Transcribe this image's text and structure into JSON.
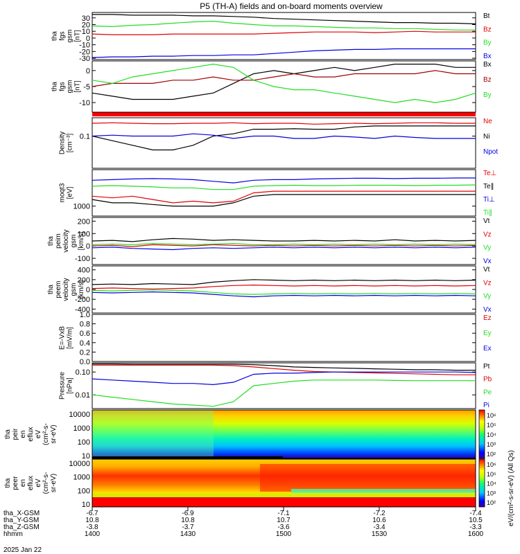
{
  "title": "P5 (TH-A) fields and on-board moments overview",
  "footer": {
    "rows": [
      {
        "label": "tha_X-GSM",
        "values": [
          "-6.7",
          "-6.9",
          "-7.1",
          "-7.2",
          "-7.4"
        ]
      },
      {
        "label": "tha_Y-GSM",
        "values": [
          "10.8",
          "10.8",
          "10.7",
          "10.6",
          "10.5"
        ]
      },
      {
        "label": "tha_Z-GSM",
        "values": [
          "-3.8",
          "-3.7",
          "-3.6",
          "-3.4",
          "-3.3"
        ]
      },
      {
        "label": "hhmm",
        "values": [
          "1400",
          "1430",
          "1500",
          "1530",
          "1600"
        ]
      }
    ],
    "date": "2025 Jan 22"
  },
  "colorbar": {
    "upper_ticks": [
      "10⁶",
      "10⁵",
      "10⁴",
      "10³",
      "10²"
    ],
    "lower_ticks": [
      "10⁶",
      "10⁵",
      "10⁴",
      "10³",
      "10²"
    ],
    "label": "eV/(cm²-s-sr-eV) (All Qs)"
  },
  "colors": {
    "black": "#000000",
    "red": "#e00000",
    "green": "#22dd22",
    "blue": "#0000e0",
    "darkred": "#a00000"
  },
  "chart_data": [
    {
      "type": "line",
      "ylabel": [
        "tha",
        "fgs",
        "gsm",
        "[nT]"
      ],
      "yticks": [
        "30",
        "20",
        "10",
        "0",
        "-10",
        "-20",
        "-30"
      ],
      "ylim": [
        -32,
        38
      ],
      "series": [
        {
          "name": "Bt",
          "color": "black",
          "values": [
            35,
            35,
            34,
            34,
            34,
            33,
            33,
            32,
            31,
            29,
            28,
            27,
            26,
            25,
            24,
            23,
            23,
            22,
            22,
            21
          ]
        },
        {
          "name": "Bz",
          "color": "red",
          "values": [
            6,
            5,
            5,
            5,
            6,
            6,
            6,
            6,
            6,
            7,
            8,
            9,
            9,
            9,
            8,
            9,
            10,
            9,
            9,
            9
          ]
        },
        {
          "name": "By",
          "color": "green",
          "values": [
            18,
            17,
            19,
            20,
            22,
            24,
            25,
            22,
            20,
            18,
            18,
            17,
            16,
            15,
            15,
            14,
            14,
            13,
            12,
            12
          ]
        },
        {
          "name": "Bx",
          "color": "blue",
          "values": [
            -29,
            -28,
            -28,
            -27,
            -27,
            -26,
            -26,
            -25,
            -25,
            -23,
            -21,
            -19,
            -18,
            -17,
            -17,
            -16,
            -16,
            -16,
            -16,
            -16
          ]
        }
      ]
    },
    {
      "type": "line",
      "ylabel": [
        "tha",
        "fgs",
        "gsm",
        "[nT]"
      ],
      "yticks": [
        "0",
        "-5",
        "-10"
      ],
      "ylim": [
        -13,
        3
      ],
      "series": [
        {
          "name": "Bx",
          "color": "black",
          "values": [
            -7,
            -8,
            -9,
            -9,
            -9,
            -8,
            -7,
            -4,
            -1,
            0,
            -1,
            0,
            1,
            0,
            1,
            2,
            2,
            2,
            1,
            1
          ]
        },
        {
          "name": "Bz",
          "color": "darkred",
          "values": [
            -5,
            -4,
            -4,
            -4,
            -3,
            -3,
            -2,
            -3,
            -3,
            -2,
            -1,
            -2,
            -2,
            -1,
            -1,
            -1,
            -1,
            0,
            -1,
            -1
          ]
        },
        {
          "name": "By",
          "color": "green",
          "values": [
            -3,
            -4,
            -2,
            -1,
            0,
            1,
            2,
            1,
            -3,
            -5,
            -6,
            -6,
            -7,
            -8,
            -9,
            -10,
            -9,
            -10,
            -9,
            -7
          ]
        }
      ]
    },
    {
      "type": "line",
      "ylabel": [
        "Density",
        "[cm⁻³]"
      ],
      "yticks": [
        "0.1"
      ],
      "ylim": [
        -1.7,
        -0.6
      ],
      "yscale": "log10",
      "series": [
        {
          "name": "Ne",
          "color": "red",
          "values": [
            -0.72,
            -0.71,
            -0.72,
            -0.73,
            -0.73,
            -0.72,
            -0.72,
            -0.71,
            -0.73,
            -0.72,
            -0.72,
            -0.74,
            -0.73,
            -0.72,
            -0.73,
            -0.72,
            -0.71,
            -0.71,
            -0.72,
            -0.72
          ]
        },
        {
          "name": "Ni",
          "color": "black",
          "values": [
            -1.0,
            -1.1,
            -1.2,
            -1.3,
            -1.3,
            -1.2,
            -1.0,
            -0.95,
            -0.85,
            -0.85,
            -0.84,
            -0.85,
            -0.85,
            -0.8,
            -0.78,
            -0.78,
            -0.78,
            -0.78,
            -0.78,
            -0.78
          ]
        },
        {
          "name": "Npot",
          "color": "blue",
          "values": [
            -1.0,
            -0.98,
            -1.0,
            -1.0,
            -1.0,
            -0.95,
            -0.98,
            -1.05,
            -1.0,
            -1.0,
            -1.05,
            -1.05,
            -1.0,
            -1.02,
            -1.05,
            -1.0,
            -1.03,
            -1.05,
            -1.05,
            -1.05
          ]
        }
      ]
    },
    {
      "type": "line",
      "ylabel": [
        "moqt3",
        "[eV]"
      ],
      "yticks": [
        "1000"
      ],
      "ylim": [
        2.7,
        4.1
      ],
      "yscale": "log10",
      "series": [
        {
          "name": "Te⊥",
          "color": "red",
          "values": [
            3.3,
            3.25,
            3.3,
            3.2,
            3.1,
            3.15,
            3.1,
            3.15,
            3.4,
            3.45,
            3.45,
            3.45,
            3.45,
            3.45,
            3.45,
            3.45,
            3.45,
            3.45,
            3.45,
            3.45
          ]
        },
        {
          "name": "Te∥",
          "color": "black",
          "values": [
            3.2,
            3.1,
            3.1,
            3.05,
            3.0,
            3.0,
            3.0,
            3.1,
            3.3,
            3.35,
            3.35,
            3.35,
            3.35,
            3.35,
            3.35,
            3.35,
            3.35,
            3.35,
            3.35,
            3.35
          ]
        },
        {
          "name": "Ti⊥",
          "color": "blue",
          "values": [
            3.78,
            3.8,
            3.82,
            3.83,
            3.82,
            3.8,
            3.75,
            3.7,
            3.78,
            3.8,
            3.8,
            3.82,
            3.83,
            3.84,
            3.84,
            3.83,
            3.84,
            3.84,
            3.85,
            3.85
          ]
        },
        {
          "name": "Ti∥",
          "color": "green",
          "values": [
            3.6,
            3.62,
            3.6,
            3.58,
            3.55,
            3.55,
            3.5,
            3.5,
            3.6,
            3.62,
            3.63,
            3.62,
            3.62,
            3.63,
            3.63,
            3.63,
            3.62,
            3.63,
            3.63,
            3.64
          ]
        }
      ]
    },
    {
      "type": "line",
      "ylabel": [
        "tha",
        "peim",
        "velocity",
        "gsm",
        "[km/s]"
      ],
      "yticks": [
        "200",
        "100",
        "0",
        "-100"
      ],
      "ylim": [
        -150,
        230
      ],
      "series": [
        {
          "name": "Vt",
          "color": "black",
          "values": [
            40,
            45,
            35,
            50,
            60,
            55,
            45,
            50,
            45,
            40,
            40,
            45,
            40,
            45,
            40,
            50,
            40,
            45,
            40,
            45
          ]
        },
        {
          "name": "Vz",
          "color": "red",
          "values": [
            0,
            5,
            -5,
            10,
            5,
            0,
            10,
            5,
            0,
            5,
            0,
            5,
            0,
            5,
            0,
            5,
            0,
            5,
            0,
            5
          ]
        },
        {
          "name": "Vy",
          "color": "green",
          "values": [
            10,
            15,
            10,
            20,
            15,
            10,
            15,
            20,
            10,
            10,
            15,
            10,
            15,
            10,
            15,
            10,
            15,
            10,
            15,
            10
          ]
        },
        {
          "name": "Vx",
          "color": "blue",
          "values": [
            -15,
            -10,
            -20,
            -25,
            -30,
            -20,
            -15,
            -20,
            -15,
            -10,
            -15,
            -10,
            -15,
            -10,
            -15,
            -10,
            -15,
            -10,
            -15,
            -10
          ]
        }
      ]
    },
    {
      "type": "line",
      "ylabel": [
        "tha",
        "peem",
        "velocity",
        "gsm",
        "[km/s]"
      ],
      "yticks": [
        "400",
        "200",
        "0",
        "-200",
        "-400"
      ],
      "ylim": [
        -480,
        480
      ],
      "series": [
        {
          "name": "Vt",
          "color": "black",
          "values": [
            100,
            110,
            100,
            120,
            110,
            100,
            150,
            180,
            200,
            190,
            180,
            190,
            180,
            190,
            180,
            190,
            180,
            190,
            180,
            190
          ]
        },
        {
          "name": "Vz",
          "color": "red",
          "values": [
            20,
            30,
            20,
            10,
            20,
            30,
            60,
            80,
            90,
            80,
            70,
            80,
            70,
            80,
            70,
            80,
            70,
            80,
            70,
            80
          ]
        },
        {
          "name": "Vy",
          "color": "green",
          "values": [
            -20,
            -30,
            -20,
            -10,
            -20,
            -30,
            -60,
            -90,
            -100,
            -90,
            -80,
            -90,
            -80,
            -90,
            -80,
            -90,
            -80,
            -90,
            -80,
            -90
          ]
        },
        {
          "name": "Vx",
          "color": "blue",
          "values": [
            -60,
            -70,
            -60,
            -50,
            -60,
            -70,
            -100,
            -130,
            -150,
            -130,
            -120,
            -130,
            -120,
            -130,
            -120,
            -130,
            -120,
            -130,
            -120,
            -130
          ]
        }
      ]
    },
    {
      "type": "line",
      "ylabel": [
        "E=-VxB",
        "[mV/m]"
      ],
      "yticks": [
        "1.0",
        "0.8",
        "0.6",
        "0.4",
        "0.2",
        "0.0"
      ],
      "ylim": [
        0,
        1
      ],
      "series": [
        {
          "name": "Ez",
          "color": "red",
          "values": []
        },
        {
          "name": "Ey",
          "color": "green",
          "values": []
        },
        {
          "name": "Ex",
          "color": "blue",
          "values": []
        }
      ]
    },
    {
      "type": "line",
      "ylabel": [
        "Pressure",
        "[nPa]"
      ],
      "yticks": [
        "0.10",
        "0.01"
      ],
      "ylim": [
        -2.6,
        -0.6
      ],
      "yscale": "log10",
      "series": [
        {
          "name": "Pt",
          "color": "black",
          "values": [
            -0.65,
            -0.65,
            -0.66,
            -0.66,
            -0.66,
            -0.66,
            -0.66,
            -0.66,
            -0.68,
            -0.72,
            -0.78,
            -0.8,
            -0.82,
            -0.84,
            -0.86,
            -0.88,
            -0.9,
            -0.9,
            -0.92,
            -0.92
          ]
        },
        {
          "name": "Pb",
          "color": "red",
          "values": [
            -0.7,
            -0.7,
            -0.7,
            -0.7,
            -0.7,
            -0.7,
            -0.7,
            -0.72,
            -0.78,
            -0.85,
            -0.92,
            -0.98,
            -1.0,
            -1.02,
            -1.04,
            -1.06,
            -1.08,
            -1.1,
            -1.12,
            -1.12
          ]
        },
        {
          "name": "Pe",
          "color": "green",
          "values": [
            -2.0,
            -2.1,
            -2.2,
            -2.3,
            -2.4,
            -2.45,
            -2.5,
            -2.3,
            -1.6,
            -1.5,
            -1.4,
            -1.35,
            -1.35,
            -1.35,
            -1.35,
            -1.37,
            -1.38,
            -1.38,
            -1.38,
            -1.38
          ]
        },
        {
          "name": "Pi",
          "color": "blue",
          "values": [
            -1.3,
            -1.35,
            -1.4,
            -1.45,
            -1.5,
            -1.5,
            -1.55,
            -1.45,
            -1.1,
            -1.05,
            -1.05,
            -1.02,
            -1.0,
            -1.0,
            -1.0,
            -1.0,
            -1.0,
            -1.0,
            -1.0,
            -1.02
          ]
        }
      ]
    },
    {
      "type": "heatmap",
      "ylabel": [
        "tha",
        "peir",
        "en",
        "eflux",
        "eV",
        "(cm²-s-",
        "sr-eV)"
      ],
      "yticks": [
        "10000",
        "1000",
        "100",
        "10"
      ]
    },
    {
      "type": "heatmap",
      "ylabel": [
        "tha",
        "peer",
        "en",
        "eflux",
        "eV",
        "(cm²-s-",
        "sr-eV)"
      ],
      "yticks": [
        "10000",
        "1000",
        "100",
        "10"
      ]
    }
  ]
}
